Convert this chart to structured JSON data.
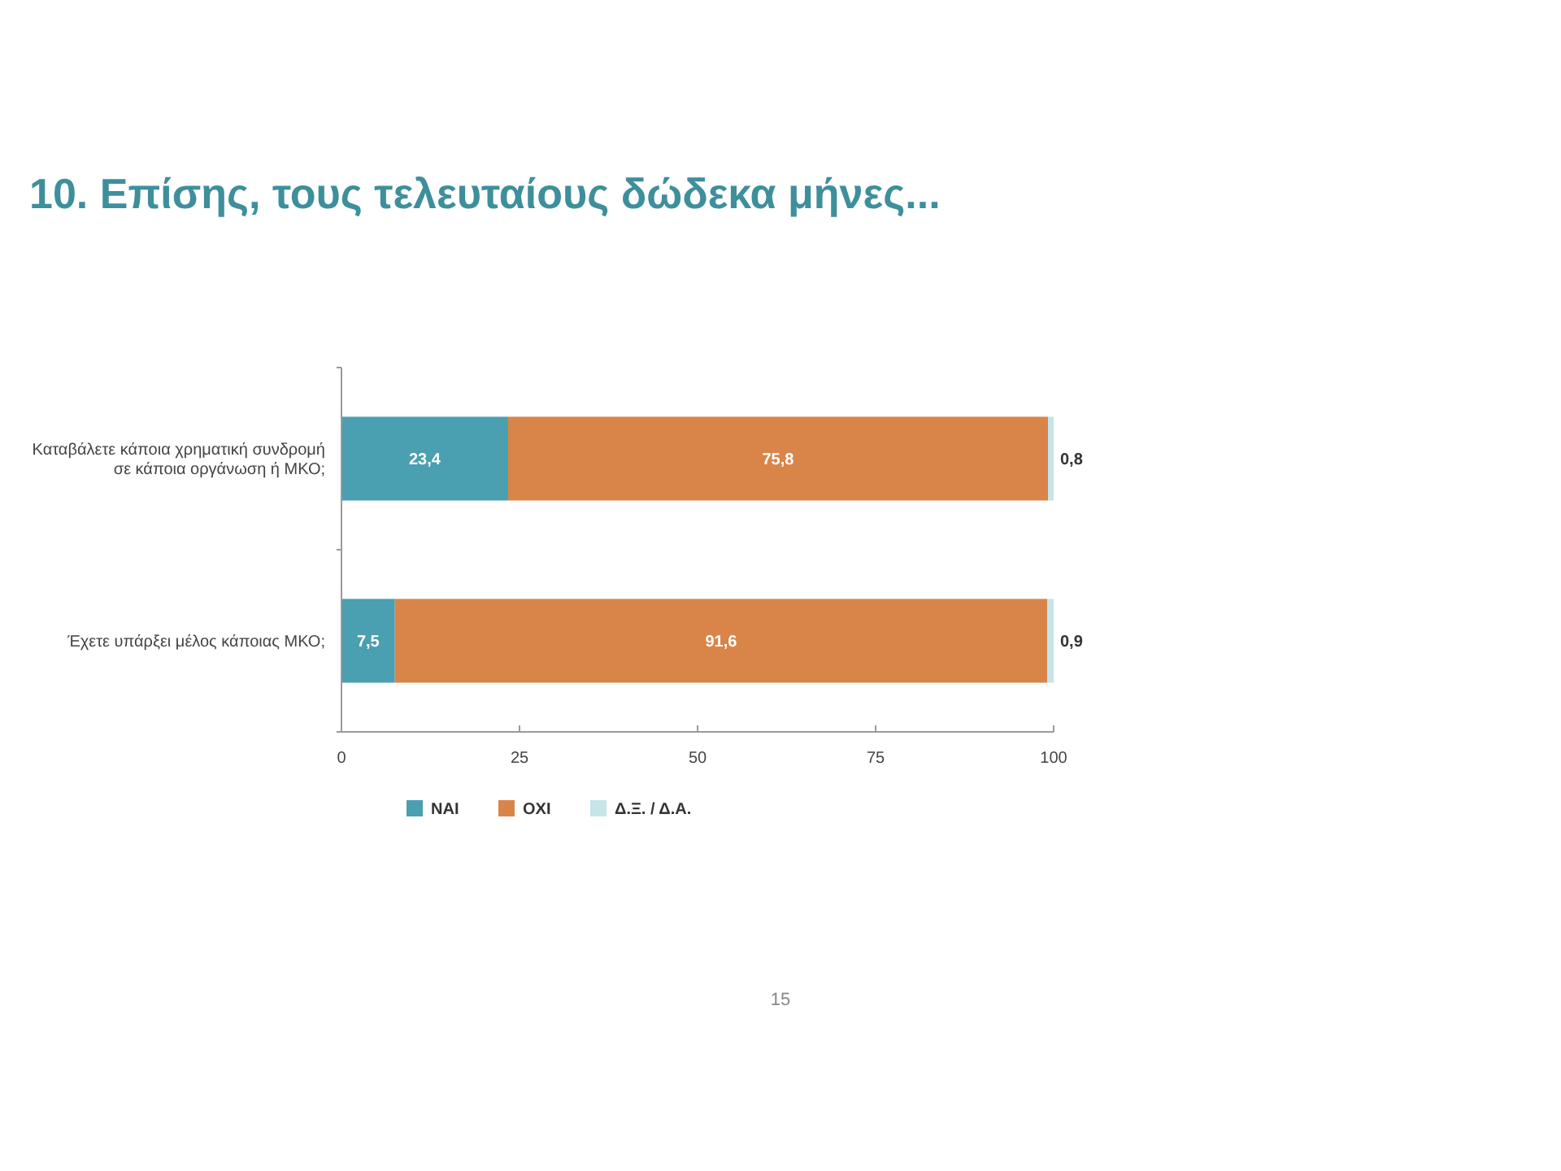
{
  "chart_data": {
    "type": "bar",
    "orientation": "horizontal",
    "stacked": true,
    "title": "10. Επίσης, τους τελευταίους δώδεκα μήνες...",
    "categories": [
      "Καταβάλετε κάποια χρηματική συνδρομή σε κάποια οργάνωση ή ΜΚΟ;",
      "Έχετε υπάρξει μέλος κάποιας ΜΚΟ;"
    ],
    "series": [
      {
        "name": "ΝΑΙ",
        "color": "#4a9fb0",
        "values": [
          23.4,
          7.5
        ],
        "value_labels": [
          "23,4",
          "7,5"
        ]
      },
      {
        "name": "ΟΧΙ",
        "color": "#d9854a",
        "values": [
          75.8,
          91.6
        ],
        "value_labels": [
          "75,8",
          "91,6"
        ]
      },
      {
        "name": "Δ.Ξ. / Δ.Α.",
        "color": "#c5e5e8",
        "values": [
          0.8,
          0.9
        ],
        "value_labels": [
          "0,8",
          "0,9"
        ]
      }
    ],
    "xlim": [
      0,
      100
    ],
    "xticks": [
      0,
      25,
      50,
      75,
      100
    ],
    "legend": "bottom",
    "annotations": [
      "15"
    ]
  }
}
